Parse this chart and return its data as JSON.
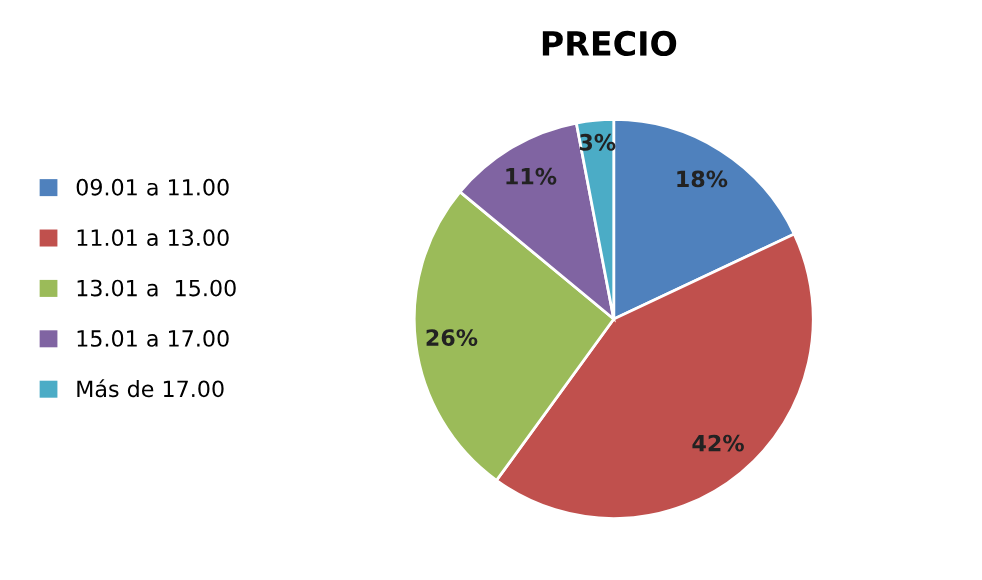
{
  "chart_data": {
    "type": "pie",
    "title": "PRECIO",
    "categories": [
      "09.01 a 11.00",
      "11.01 a 13.00",
      "13.01 a  15.00",
      "15.01 a 17.00",
      "Más de 17.00"
    ],
    "values": [
      18,
      42,
      26,
      11,
      3
    ],
    "colors": [
      "#4f81bd",
      "#c0504d",
      "#9bbb59",
      "#8064a2",
      "#4bacc6"
    ],
    "value_labels": [
      "18%",
      "42%",
      "26%",
      "11%",
      "3%"
    ],
    "legend": "left"
  }
}
